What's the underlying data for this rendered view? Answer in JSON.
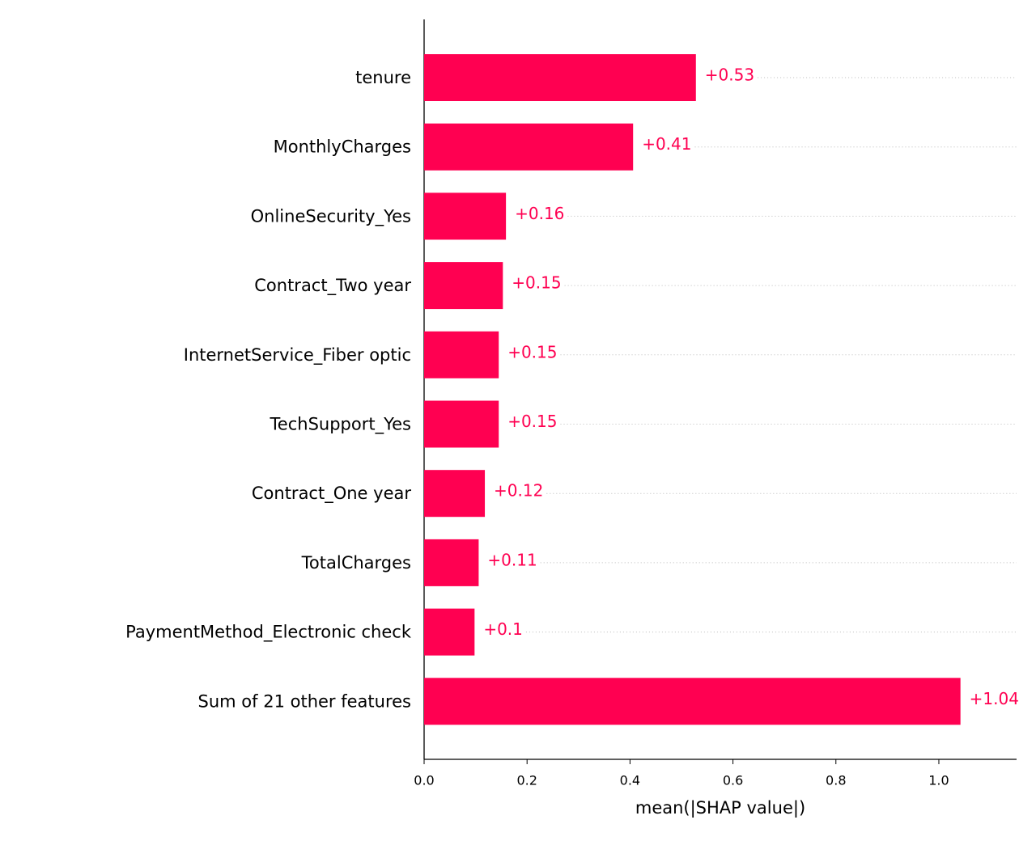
{
  "chart_data": {
    "type": "bar",
    "orientation": "horizontal",
    "categories": [
      "tenure",
      "MonthlyCharges",
      "OnlineSecurity_Yes",
      "Contract_Two year",
      "InternetService_Fiber optic",
      "TechSupport_Yes",
      "Contract_One year",
      "TotalCharges",
      "PaymentMethod_Electronic check",
      "Sum of 21 other features"
    ],
    "values": [
      0.528,
      0.406,
      0.159,
      0.153,
      0.145,
      0.145,
      0.118,
      0.106,
      0.098,
      1.042
    ],
    "value_labels": [
      "+0.53",
      "+0.41",
      "+0.16",
      "+0.15",
      "+0.15",
      "+0.15",
      "+0.12",
      "+0.11",
      "+0.1",
      "+1.04"
    ],
    "color": "#ff0051",
    "xlabel": "mean(|SHAP value|)",
    "xlim": [
      0,
      1.151
    ],
    "xticks": [
      {
        "value": 0,
        "label": "0.0"
      },
      0.2,
      0.4,
      0.6,
      0.8,
      {
        "value": 1,
        "label": "1.0"
      }
    ]
  }
}
